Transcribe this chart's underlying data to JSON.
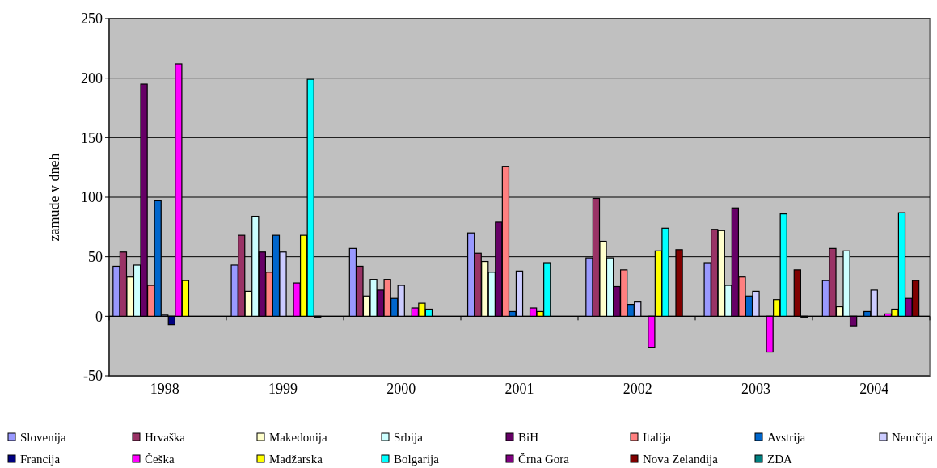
{
  "chart_data": {
    "type": "bar",
    "ylabel": "zamude v dneh",
    "categories": [
      "1998",
      "1999",
      "2000",
      "2001",
      "2002",
      "2003",
      "2004"
    ],
    "ylim": [
      -50,
      250
    ],
    "yticks": [
      -50,
      0,
      50,
      100,
      150,
      200,
      250
    ],
    "grid": "y",
    "legend": "bottom",
    "series": [
      {
        "name": "Slovenija",
        "color": "#9999ff",
        "values": [
          42,
          43,
          57,
          70,
          49,
          45,
          30
        ]
      },
      {
        "name": "Hrvaška",
        "color": "#993366",
        "values": [
          54,
          68,
          42,
          53,
          99,
          73,
          57
        ]
      },
      {
        "name": "Makedonija",
        "color": "#ffffcc",
        "values": [
          33,
          21,
          17,
          46,
          63,
          72,
          8
        ]
      },
      {
        "name": "Srbija",
        "color": "#ccffff",
        "values": [
          43,
          84,
          31,
          37,
          49,
          26,
          55
        ]
      },
      {
        "name": "BiH",
        "color": "#660066",
        "values": [
          195,
          54,
          22,
          79,
          25,
          91,
          -8
        ]
      },
      {
        "name": "Italija",
        "color": "#ff8080",
        "values": [
          26,
          37,
          31,
          126,
          39,
          33,
          null
        ]
      },
      {
        "name": "Avstrija",
        "color": "#0066cc",
        "values": [
          97,
          68,
          15,
          4,
          10,
          17,
          4
        ]
      },
      {
        "name": "Nemčija",
        "color": "#ccccff",
        "values": [
          1,
          54,
          26,
          38,
          12,
          21,
          22
        ]
      },
      {
        "name": "Francija",
        "color": "#000080",
        "values": [
          -7,
          null,
          null,
          null,
          null,
          null,
          null
        ]
      },
      {
        "name": "Češka",
        "color": "#ff00ff",
        "values": [
          212,
          28,
          7,
          7,
          -26,
          -30,
          2
        ]
      },
      {
        "name": "Madžarska",
        "color": "#ffff00",
        "values": [
          30,
          68,
          11,
          4,
          55,
          14,
          6
        ]
      },
      {
        "name": "Bolgarija",
        "color": "#00ffff",
        "values": [
          null,
          199,
          6,
          45,
          74,
          86,
          87
        ]
      },
      {
        "name": "Črna Gora",
        "color": "#800080",
        "values": [
          null,
          0,
          null,
          null,
          null,
          null,
          15
        ]
      },
      {
        "name": "Nova Zelandija",
        "color": "#800000",
        "values": [
          null,
          null,
          null,
          null,
          56,
          39,
          30
        ]
      },
      {
        "name": "ZDA",
        "color": "#008080",
        "values": [
          null,
          null,
          null,
          null,
          null,
          0,
          null
        ]
      }
    ]
  }
}
